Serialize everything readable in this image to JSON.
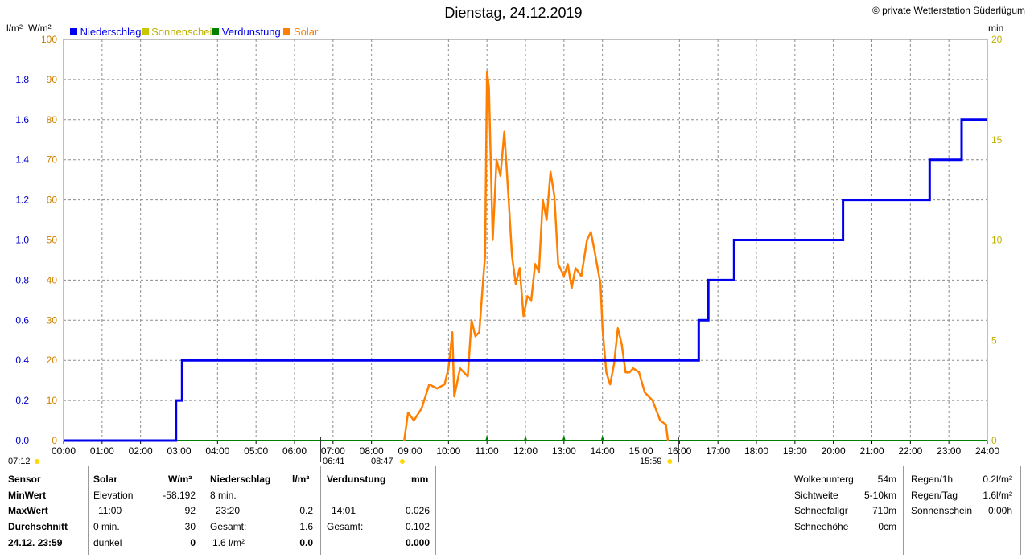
{
  "header": {
    "title": "Dienstag, 24.12.2019",
    "copyright": "© private Wetterstation Süderlügum",
    "unit_left": "l/m²",
    "unit_solar": "W/m²",
    "unit_right": "min"
  },
  "legend": {
    "niederschlag": "Niederschlag",
    "sonnenschein": "Sonnenschein",
    "verdunstung": "Verdunstung",
    "solar": "Solar"
  },
  "markers": {
    "left_edge": "07:12",
    "sunrise": "06:41",
    "solar_start": "08:47",
    "sunset": "15:59"
  },
  "colors": {
    "niederschlag": "#0000ee",
    "sonnenschein": "#c8c800",
    "verdunstung": "#008000",
    "solar": "#ff8000",
    "title_red": "#ff0000",
    "axis_left": "#0000cc",
    "axis_solar": "#d08000",
    "axis_right": "#c0b000"
  },
  "table": {
    "col1": {
      "header": "Sensor",
      "r1": "MinWert",
      "r2": "MaxWert",
      "r3": "Durchschnitt",
      "r4": "24.12. 23:59"
    },
    "col2": {
      "header": "Solar",
      "unit": "W/m²",
      "r1_label": "Elevation",
      "r1_value": "-58.192",
      "r2_label": "11:00",
      "r2_value": "92",
      "r3_label": "0 min.",
      "r3_value": "30",
      "r4_label": "dunkel",
      "r4_value": "0"
    },
    "col3": {
      "header": "Niederschlag",
      "unit": "l/m²",
      "r1_label": "8 min.",
      "r2_label": "23:20",
      "r2_value": "0.2",
      "r3_label": "Gesamt:",
      "r3_value": "1.6",
      "r4_label": "1.6 l/m²",
      "r4_value": "0.0"
    },
    "col4": {
      "header": "Verdunstung",
      "unit": "mm",
      "r2_label": "14:01",
      "r2_value": "0.026",
      "r3_label": "Gesamt:",
      "r3_value": "0.102",
      "r4_value": "0.000"
    },
    "right1": {
      "r1_label": "Wolkenunterg",
      "r1_value": "54m",
      "r2_label": "Sichtweite",
      "r2_value": "5-10km",
      "r3_label": "Schneefallgr",
      "r3_value": "710m",
      "r4_label": "Schneehöhe",
      "r4_value": "0cm"
    },
    "right2": {
      "r1_label": "Regen/1h",
      "r1_value": "0.2l/m²",
      "r2_label": "Regen/Tag",
      "r2_value": "1.6l/m²",
      "r3_label": "Sonnenschein",
      "r3_value": "0:00h"
    }
  },
  "chart_data": {
    "type": "line",
    "x_axis": {
      "ticks": [
        "00:00",
        "01:00",
        "02:00",
        "03:00",
        "04:00",
        "05:00",
        "06:00",
        "07:00",
        "08:00",
        "09:00",
        "10:00",
        "11:00",
        "12:00",
        "13:00",
        "14:00",
        "15:00",
        "16:00",
        "17:00",
        "18:00",
        "19:00",
        "20:00",
        "21:00",
        "22:00",
        "23:00",
        "24:00"
      ],
      "range_hours": [
        0,
        24
      ]
    },
    "y_left_precip": {
      "ticks": [
        "0.0",
        "0.2",
        "0.4",
        "0.6",
        "0.8",
        "1.0",
        "1.2",
        "1.4",
        "1.6",
        "1.8"
      ],
      "range": [
        0,
        2.0
      ]
    },
    "y_left_solar": {
      "ticks": [
        "0",
        "10",
        "20",
        "30",
        "40",
        "50",
        "60",
        "70",
        "80",
        "90",
        "100"
      ],
      "range": [
        0,
        100
      ]
    },
    "y_right_sunshine": {
      "ticks": [
        "0",
        "5",
        "10",
        "15",
        "20"
      ],
      "range": [
        0,
        20
      ]
    },
    "grid": true,
    "series": [
      {
        "name": "Niederschlag",
        "type": "step",
        "points": [
          [
            0,
            0
          ],
          [
            2.92,
            0
          ],
          [
            2.92,
            0.2
          ],
          [
            3.08,
            0.2
          ],
          [
            3.08,
            0.4
          ],
          [
            16.5,
            0.4
          ],
          [
            16.5,
            0.6
          ],
          [
            16.75,
            0.6
          ],
          [
            16.75,
            0.8
          ],
          [
            17.42,
            0.8
          ],
          [
            17.42,
            1.0
          ],
          [
            20.25,
            1.0
          ],
          [
            20.25,
            1.2
          ],
          [
            22.5,
            1.2
          ],
          [
            22.5,
            1.4
          ],
          [
            23.33,
            1.4
          ],
          [
            23.33,
            1.6
          ],
          [
            24,
            1.6
          ]
        ]
      },
      {
        "name": "Solar",
        "points": [
          [
            8.85,
            0
          ],
          [
            8.95,
            7
          ],
          [
            9.1,
            5
          ],
          [
            9.3,
            8
          ],
          [
            9.5,
            14
          ],
          [
            9.7,
            13
          ],
          [
            9.9,
            14
          ],
          [
            10.0,
            18
          ],
          [
            10.1,
            27
          ],
          [
            10.15,
            11
          ],
          [
            10.3,
            18
          ],
          [
            10.5,
            16
          ],
          [
            10.6,
            30
          ],
          [
            10.7,
            26
          ],
          [
            10.8,
            27
          ],
          [
            10.9,
            40
          ],
          [
            10.95,
            46
          ],
          [
            11.0,
            92
          ],
          [
            11.05,
            88
          ],
          [
            11.15,
            50
          ],
          [
            11.25,
            70
          ],
          [
            11.35,
            66
          ],
          [
            11.45,
            77
          ],
          [
            11.55,
            62
          ],
          [
            11.65,
            46
          ],
          [
            11.75,
            39
          ],
          [
            11.85,
            43
          ],
          [
            11.95,
            31
          ],
          [
            12.05,
            36
          ],
          [
            12.15,
            35
          ],
          [
            12.25,
            44
          ],
          [
            12.35,
            42
          ],
          [
            12.45,
            60
          ],
          [
            12.55,
            55
          ],
          [
            12.65,
            67
          ],
          [
            12.75,
            61
          ],
          [
            12.85,
            44
          ],
          [
            13.0,
            41
          ],
          [
            13.1,
            44
          ],
          [
            13.2,
            38
          ],
          [
            13.3,
            43
          ],
          [
            13.45,
            41
          ],
          [
            13.6,
            50
          ],
          [
            13.7,
            52
          ],
          [
            13.8,
            47
          ],
          [
            13.95,
            39
          ],
          [
            14.0,
            28
          ],
          [
            14.1,
            17
          ],
          [
            14.2,
            14
          ],
          [
            14.3,
            19
          ],
          [
            14.4,
            28
          ],
          [
            14.5,
            24
          ],
          [
            14.6,
            17
          ],
          [
            14.7,
            17
          ],
          [
            14.8,
            18
          ],
          [
            14.95,
            17
          ],
          [
            15.1,
            12
          ],
          [
            15.3,
            10
          ],
          [
            15.5,
            5
          ],
          [
            15.65,
            4
          ],
          [
            15.7,
            0
          ]
        ]
      },
      {
        "name": "Verdunstung",
        "points": [
          [
            11.0,
            0.01
          ],
          [
            12.0,
            0.015
          ],
          [
            13.0,
            0.01
          ],
          [
            14.0,
            0.026
          ]
        ]
      },
      {
        "name": "Sonnenschein",
        "points": [
          [
            0,
            0
          ],
          [
            24,
            0
          ]
        ]
      }
    ]
  }
}
